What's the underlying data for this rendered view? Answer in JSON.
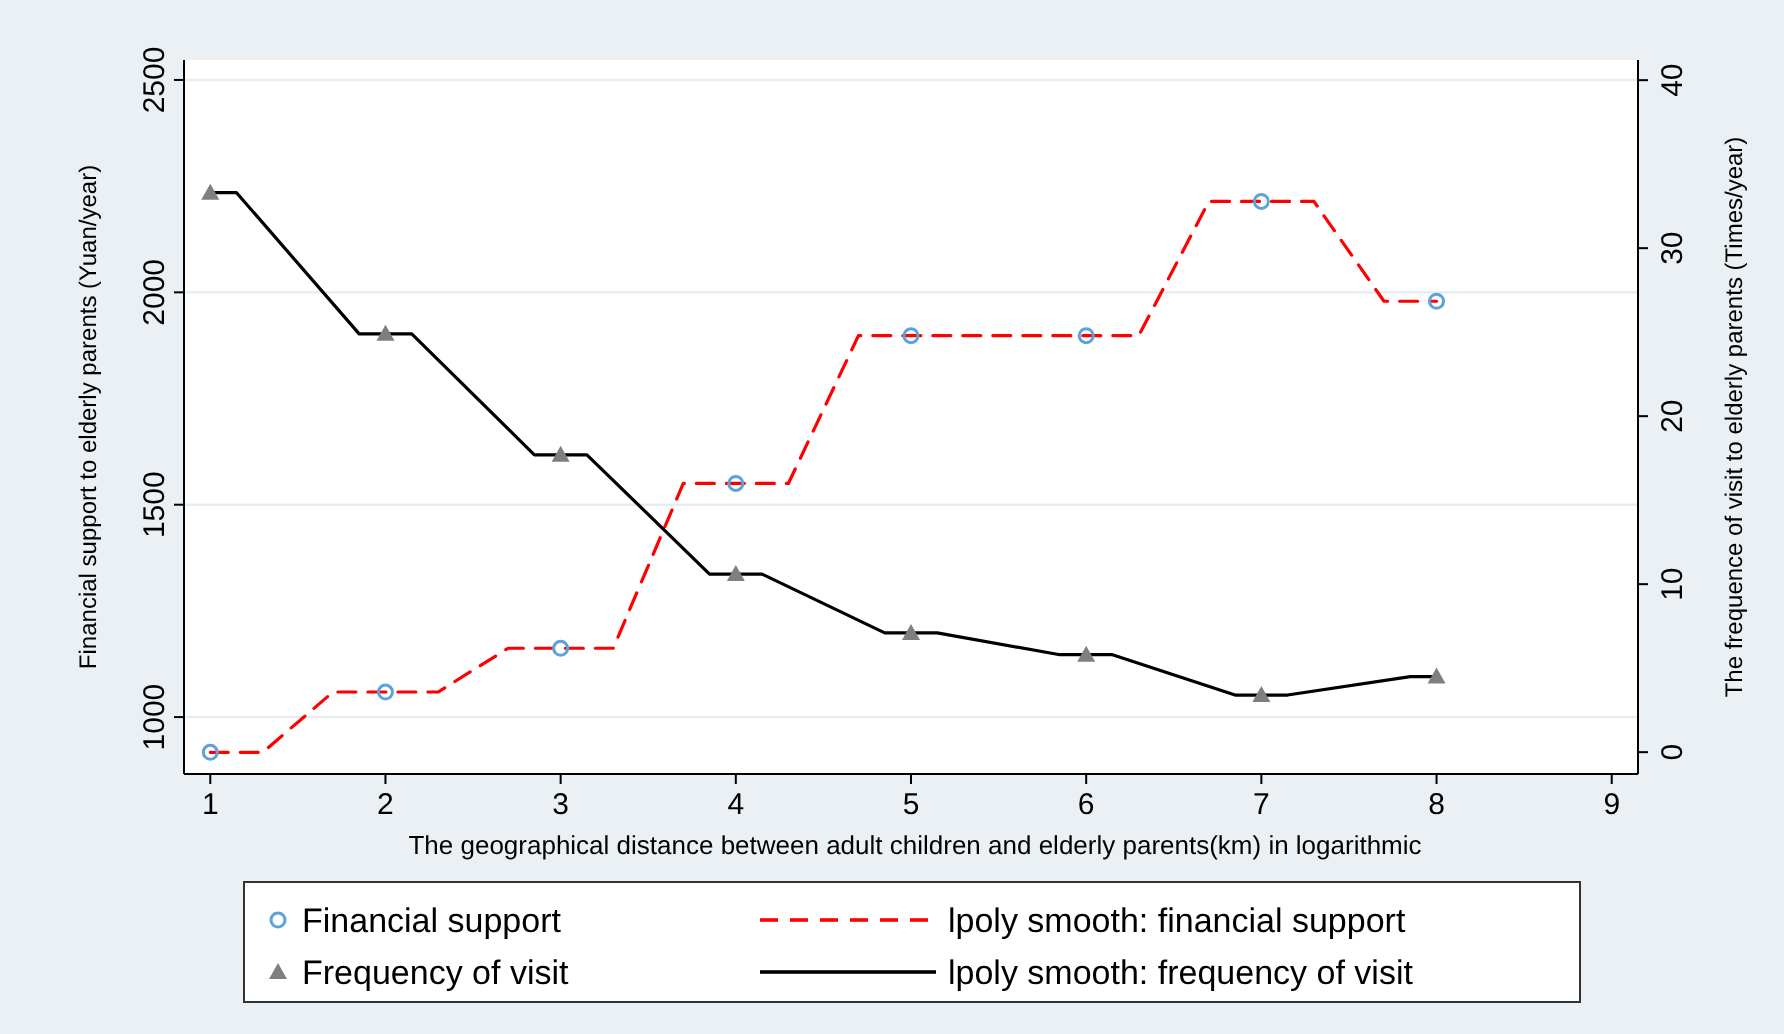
{
  "chart_data": {
    "type": "line",
    "xlabel": "The geographical distance between adult children and elderly parents(km) in logarithmic",
    "ylabel": "Financial support to elderly parents (Yuan/year)",
    "y2label": "The frequence of visit to elderly parents  (Times/year)",
    "xlim": [
      0.85,
      9.15
    ],
    "xticks": [
      1,
      2,
      3,
      4,
      5,
      6,
      7,
      8,
      9
    ],
    "ylim": [
      866,
      2547
    ],
    "yticks": [
      1000,
      1500,
      2000,
      2500
    ],
    "y2lim": [
      -1.3,
      41.2
    ],
    "y2ticks": [
      0,
      10,
      20,
      30,
      40
    ],
    "grid": "y",
    "legend": "bottom",
    "series": [
      {
        "name": "Financial support",
        "type": "scatter",
        "marker": "circle",
        "color": "#5ba3d9",
        "x": [
          1,
          2,
          3,
          4,
          5,
          6,
          7,
          8
        ],
        "values": [
          917,
          1059,
          1162,
          1550,
          1898,
          1898,
          2214,
          1979
        ]
      },
      {
        "name": "Frequency of visit",
        "type": "scatter",
        "marker": "triangle",
        "axis": "y2",
        "color": "#7f7f7f",
        "x": [
          1,
          2,
          3,
          4,
          5,
          6,
          7,
          8
        ],
        "values": [
          33.3,
          24.9,
          17.7,
          10.6,
          7.1,
          5.8,
          3.4,
          4.5
        ]
      },
      {
        "name": "lpoly smooth: financial support",
        "line_style": "dashed",
        "color": "#ff0000",
        "x": [
          1,
          1.3,
          1.7,
          2.3,
          2.7,
          3.3,
          3.7,
          4.3,
          4.7,
          5.3,
          5.7,
          6.3,
          6.7,
          7.3,
          7.7,
          8
        ],
        "values": [
          917,
          917,
          1059,
          1059,
          1162,
          1162,
          1550,
          1550,
          1898,
          1898,
          1898,
          1898,
          2214,
          2214,
          1979,
          1979
        ]
      },
      {
        "name": "lpoly smooth: frequency of visit",
        "line_style": "solid",
        "axis": "y2",
        "color": "#000000",
        "x": [
          1,
          1.15,
          1.85,
          2.15,
          2.85,
          3.15,
          3.85,
          4.15,
          4.85,
          5.15,
          5.85,
          6.15,
          6.85,
          7.15,
          7.85,
          8
        ],
        "values": [
          33.3,
          33.3,
          24.9,
          24.9,
          17.7,
          17.7,
          10.6,
          10.6,
          7.1,
          7.1,
          5.8,
          5.8,
          3.4,
          3.4,
          4.5,
          4.5
        ]
      }
    ]
  }
}
